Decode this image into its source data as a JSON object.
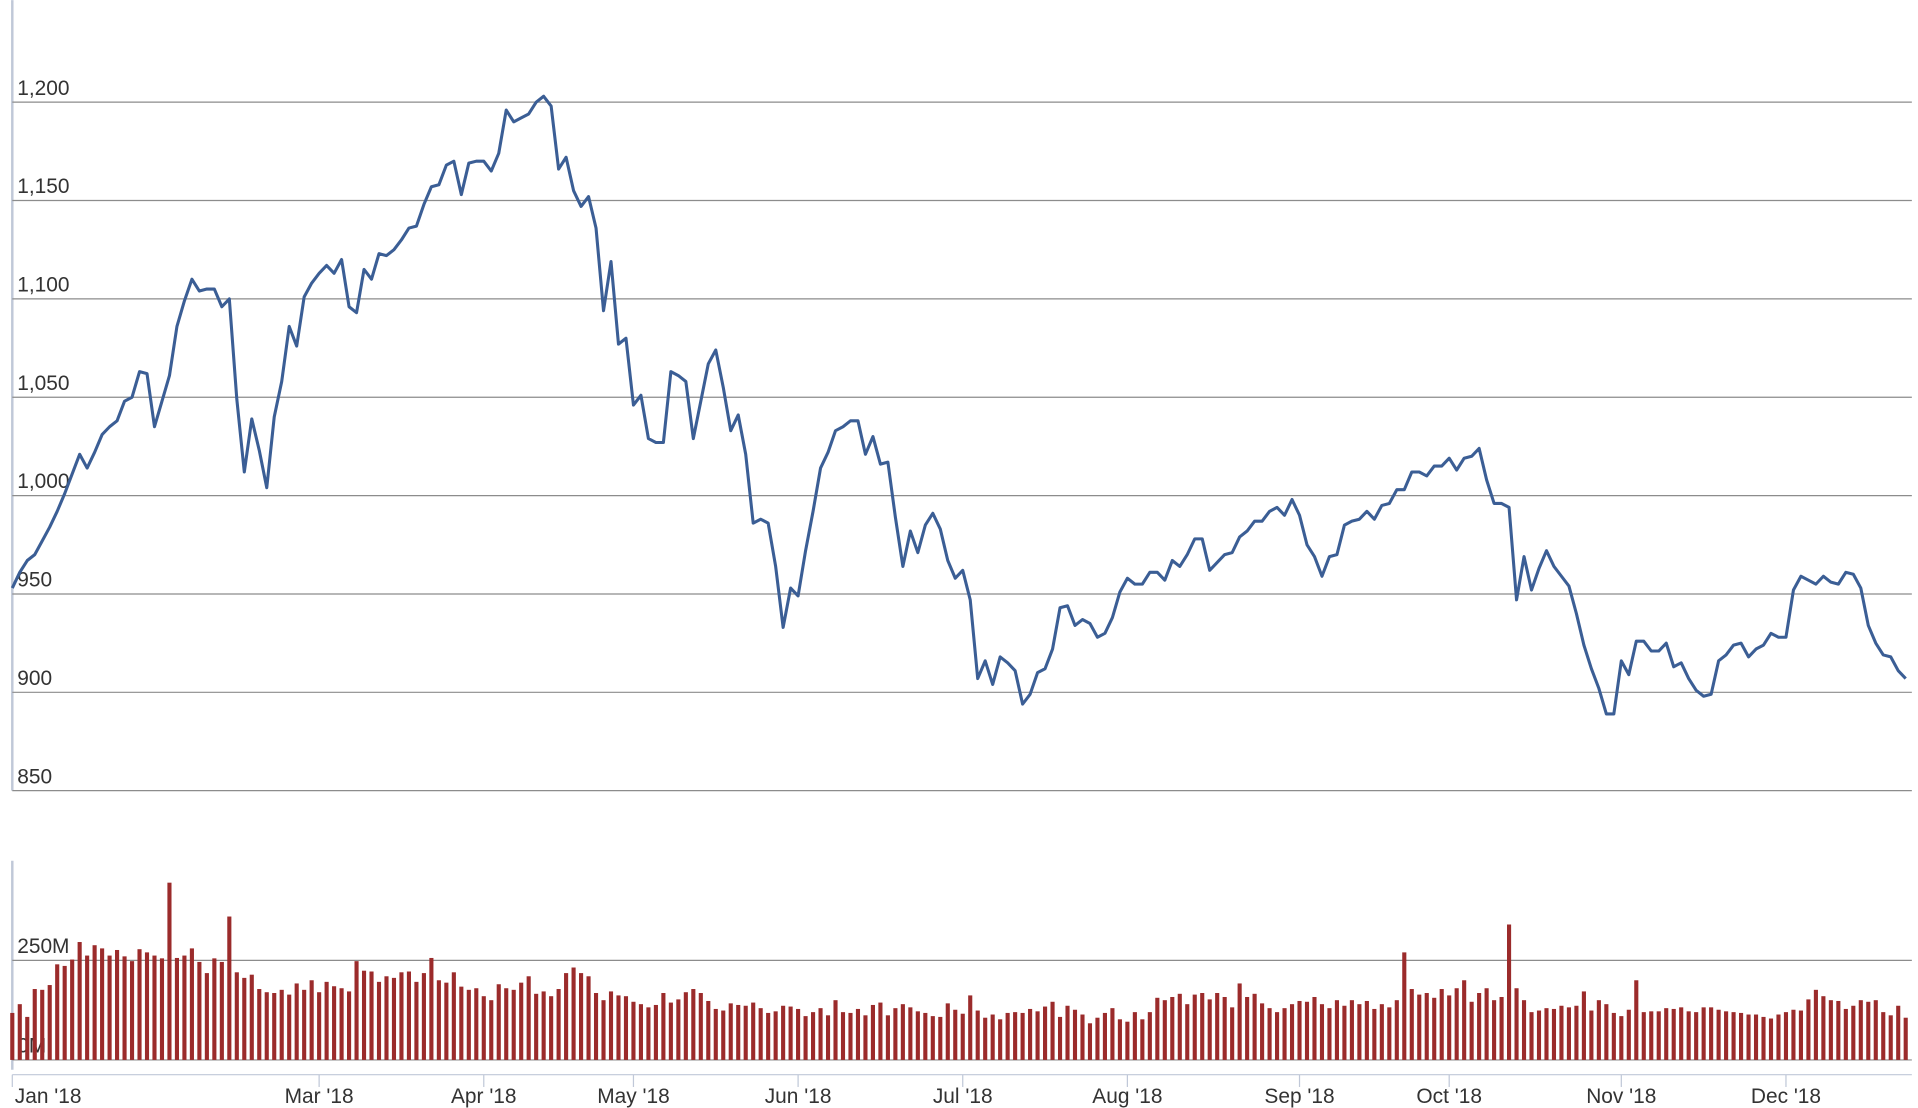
{
  "chart_data": {
    "type": "stock",
    "categories": [
      "Jan '18",
      null,
      null,
      null,
      null,
      null,
      null,
      null,
      null,
      null,
      null,
      null,
      null,
      null,
      null,
      null,
      null,
      null,
      null,
      null,
      null,
      null,
      null,
      null,
      null,
      null,
      null,
      null,
      null,
      null,
      null,
      null,
      null,
      null,
      null,
      null,
      null,
      null,
      null,
      null,
      null,
      "Mar '18",
      null,
      null,
      null,
      null,
      null,
      null,
      null,
      null,
      null,
      null,
      null,
      null,
      null,
      null,
      null,
      null,
      null,
      null,
      null,
      null,
      null,
      "Apr '18",
      null,
      null,
      null,
      null,
      null,
      null,
      null,
      null,
      null,
      null,
      null,
      null,
      null,
      null,
      null,
      null,
      null,
      null,
      null,
      "May '18",
      null,
      null,
      null,
      null,
      null,
      null,
      null,
      null,
      null,
      null,
      null,
      null,
      null,
      null,
      null,
      null,
      null,
      null,
      null,
      null,
      null,
      "Jun '18",
      null,
      null,
      null,
      null,
      null,
      null,
      null,
      null,
      null,
      null,
      null,
      null,
      null,
      null,
      null,
      null,
      null,
      null,
      null,
      null,
      null,
      "Jul '18",
      null,
      null,
      null,
      null,
      null,
      null,
      null,
      null,
      null,
      null,
      null,
      null,
      null,
      null,
      null,
      null,
      null,
      null,
      null,
      null,
      null,
      "Aug '18",
      null,
      null,
      null,
      null,
      null,
      null,
      null,
      null,
      null,
      null,
      null,
      null,
      null,
      null,
      null,
      null,
      null,
      null,
      null,
      null,
      null,
      null,
      "Sep '18",
      null,
      null,
      null,
      null,
      null,
      null,
      null,
      null,
      null,
      null,
      null,
      null,
      null,
      null,
      null,
      null,
      null,
      null,
      null,
      "Oct '18",
      null,
      null,
      null,
      null,
      null,
      null,
      null,
      null,
      null,
      null,
      null,
      null,
      null,
      null,
      null,
      null,
      null,
      null,
      null,
      null,
      null,
      null,
      "Nov '18",
      null,
      null,
      null,
      null,
      null,
      null,
      null,
      null,
      null,
      null,
      null,
      null,
      null,
      null,
      null,
      null,
      null,
      null,
      null,
      null,
      null,
      "Dec '18",
      null,
      null,
      null,
      null,
      null,
      null,
      null,
      null,
      null,
      null,
      null,
      null,
      null,
      null,
      null,
      null
    ],
    "series": [
      {
        "type": "line",
        "color": "#3b5e95",
        "values": [
          953,
          961,
          967,
          970,
          977,
          984,
          992,
          1001,
          1011,
          1021,
          1014,
          1022,
          1031,
          1035,
          1038,
          1048,
          1050,
          1063,
          1062,
          1035,
          1048,
          1061,
          1086,
          1099,
          1110,
          1104,
          1105,
          1105,
          1096,
          1100,
          1049,
          1012,
          1039,
          1023,
          1004,
          1040,
          1058,
          1086,
          1076,
          1101,
          1108,
          1113,
          1117,
          1113,
          1120,
          1096,
          1093,
          1115,
          1110,
          1123,
          1122,
          1125,
          1130,
          1136,
          1137,
          1148,
          1157,
          1158,
          1168,
          1170,
          1153,
          1169,
          1170,
          1170,
          1165,
          1174,
          1196,
          1190,
          1192,
          1194,
          1200,
          1203,
          1198,
          1166,
          1172,
          1155,
          1147,
          1152,
          1136,
          1094,
          1119,
          1077,
          1080,
          1046,
          1051,
          1029,
          1027,
          1027,
          1063,
          1061,
          1058,
          1029,
          1048,
          1067,
          1074,
          1055,
          1033,
          1041,
          1021,
          986,
          988,
          986,
          964,
          933,
          953,
          949,
          972,
          992,
          1014,
          1022,
          1033,
          1035,
          1038,
          1038,
          1021,
          1030,
          1016,
          1017,
          989,
          964,
          982,
          971,
          985,
          991,
          983,
          967,
          958,
          962,
          947,
          907,
          916,
          904,
          918,
          915,
          911,
          894,
          899,
          910,
          912,
          922,
          943,
          944,
          934,
          937,
          935,
          928,
          930,
          938,
          951,
          958,
          955,
          955,
          961,
          961,
          957,
          967,
          964,
          970,
          978,
          978,
          962,
          966,
          970,
          971,
          979,
          982,
          987,
          987,
          992,
          994,
          990,
          998,
          990,
          975,
          969,
          959,
          969,
          970,
          985,
          987,
          988,
          992,
          988,
          995,
          996,
          1003,
          1003,
          1012,
          1012,
          1010,
          1015,
          1015,
          1019,
          1013,
          1019,
          1020,
          1024,
          1008,
          996,
          996,
          994,
          947,
          969,
          952,
          963,
          972,
          964,
          959,
          954,
          940,
          924,
          912,
          902,
          889,
          889,
          916,
          909,
          926,
          926,
          921,
          921,
          925,
          913,
          915,
          907,
          901,
          898,
          899,
          916,
          919,
          924,
          925,
          918,
          922,
          924,
          930,
          928,
          928,
          952,
          959,
          957,
          955,
          959,
          956,
          955,
          961,
          960,
          953,
          934,
          925,
          919,
          918,
          911,
          907
        ]
      },
      {
        "type": "bar",
        "axis": "y2",
        "color": "#9b2b2b",
        "values": [
          118,
          140,
          108,
          178,
          176,
          188,
          240,
          236,
          252,
          296,
          262,
          288,
          280,
          262,
          276,
          260,
          248,
          278,
          270,
          262,
          255,
          445,
          256,
          262,
          280,
          246,
          218,
          255,
          246,
          360,
          220,
          206,
          214,
          178,
          170,
          168,
          176,
          164,
          192,
          176,
          200,
          170,
          196,
          185,
          180,
          172,
          248,
          224,
          222,
          196,
          210,
          206,
          220,
          222,
          196,
          218,
          256,
          200,
          194,
          220,
          184,
          176,
          180,
          160,
          150,
          190,
          180,
          176,
          194,
          210,
          166,
          172,
          160,
          178,
          218,
          232,
          218,
          210,
          168,
          150,
          172,
          162,
          160,
          146,
          140,
          132,
          138,
          168,
          144,
          152,
          170,
          178,
          168,
          148,
          128,
          124,
          142,
          138,
          136,
          144,
          130,
          118,
          122,
          136,
          134,
          128,
          110,
          120,
          130,
          112,
          150,
          120,
          118,
          128,
          112,
          138,
          144,
          112,
          130,
          140,
          132,
          122,
          118,
          110,
          108,
          142,
          126,
          116,
          162,
          124,
          106,
          114,
          102,
          118,
          120,
          118,
          128,
          122,
          134,
          146,
          108,
          136,
          126,
          114,
          92,
          106,
          118,
          130,
          102,
          96,
          120,
          102,
          120,
          156,
          150,
          158,
          166,
          140,
          164,
          168,
          152,
          168,
          158,
          132,
          192,
          158,
          166,
          142,
          130,
          120,
          130,
          140,
          148,
          146,
          158,
          140,
          130,
          150,
          136,
          150,
          140,
          148,
          128,
          140,
          132,
          150,
          270,
          178,
          164,
          168,
          156,
          178,
          162,
          180,
          200,
          146,
          168,
          180,
          150,
          158,
          340,
          180,
          150,
          120,
          124,
          130,
          128,
          136,
          132,
          136,
          172,
          124,
          150,
          140,
          118,
          110,
          126,
          200,
          120,
          122,
          122,
          130,
          128,
          132,
          122,
          120,
          132,
          132,
          126,
          122,
          120,
          118,
          114,
          114,
          108,
          104,
          114,
          120,
          126,
          124,
          152,
          176,
          160,
          150,
          148,
          128,
          136,
          150,
          146,
          150,
          120,
          112,
          136,
          106
        ]
      }
    ],
    "ylim": [
      850,
      1250
    ],
    "yticks": [
      850,
      900,
      950,
      {
        "value": 1000,
        "label": "1,000"
      },
      {
        "value": 1050,
        "label": "1,050"
      },
      {
        "value": 1100,
        "label": "1,100"
      },
      {
        "value": 1150,
        "label": "1,150"
      },
      {
        "value": 1200,
        "label": "1,200"
      }
    ],
    "y2lim": [
      0,
      500
    ],
    "y2ticks": [
      {
        "value": 0,
        "label": "0M"
      },
      {
        "value": 250,
        "label": "250M"
      }
    ],
    "grid": true
  }
}
